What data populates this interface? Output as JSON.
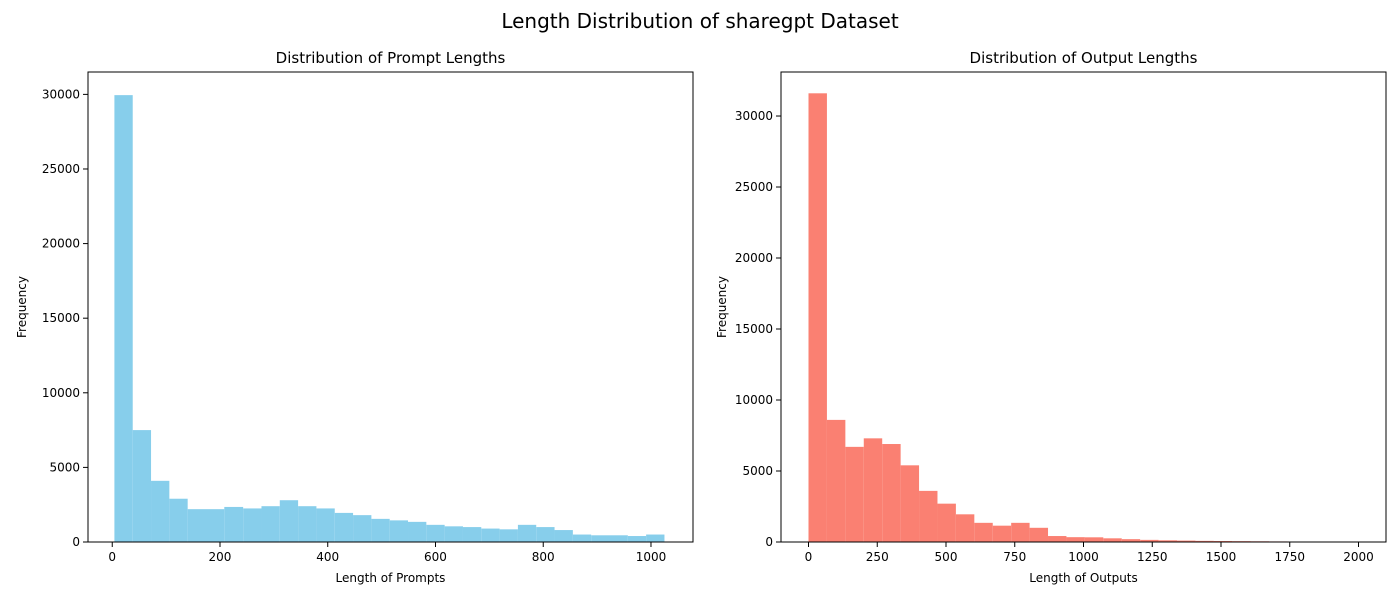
{
  "figure": {
    "title": "Length Distribution of sharegpt Dataset"
  },
  "chart_data": [
    {
      "type": "bar",
      "title": "Distribution of Prompt Lengths",
      "xlabel": "Length of Prompts",
      "ylabel": "Frequency",
      "color": "#87CEEB",
      "xlim": [
        -45,
        1078
      ],
      "ylim": [
        0,
        31500
      ],
      "bins": [
        {
          "x0": 4,
          "x1": 38,
          "count": 29950
        },
        {
          "x0": 38,
          "x1": 72,
          "count": 7500
        },
        {
          "x0": 72,
          "x1": 106,
          "count": 4100
        },
        {
          "x0": 106,
          "x1": 140,
          "count": 2900
        },
        {
          "x0": 140,
          "x1": 174,
          "count": 2200
        },
        {
          "x0": 174,
          "x1": 208,
          "count": 2200
        },
        {
          "x0": 208,
          "x1": 243,
          "count": 2350
        },
        {
          "x0": 243,
          "x1": 277,
          "count": 2250
        },
        {
          "x0": 277,
          "x1": 311,
          "count": 2400
        },
        {
          "x0": 311,
          "x1": 345,
          "count": 2800
        },
        {
          "x0": 345,
          "x1": 379,
          "count": 2400
        },
        {
          "x0": 379,
          "x1": 413,
          "count": 2250
        },
        {
          "x0": 413,
          "x1": 447,
          "count": 1950
        },
        {
          "x0": 447,
          "x1": 481,
          "count": 1800
        },
        {
          "x0": 481,
          "x1": 515,
          "count": 1550
        },
        {
          "x0": 515,
          "x1": 549,
          "count": 1450
        },
        {
          "x0": 549,
          "x1": 583,
          "count": 1350
        },
        {
          "x0": 583,
          "x1": 617,
          "count": 1150
        },
        {
          "x0": 617,
          "x1": 651,
          "count": 1050
        },
        {
          "x0": 651,
          "x1": 685,
          "count": 1000
        },
        {
          "x0": 685,
          "x1": 719,
          "count": 900
        },
        {
          "x0": 719,
          "x1": 753,
          "count": 850
        },
        {
          "x0": 753,
          "x1": 787,
          "count": 1150
        },
        {
          "x0": 787,
          "x1": 821,
          "count": 1000
        },
        {
          "x0": 821,
          "x1": 855,
          "count": 800
        },
        {
          "x0": 855,
          "x1": 889,
          "count": 500
        },
        {
          "x0": 889,
          "x1": 923,
          "count": 450
        },
        {
          "x0": 923,
          "x1": 957,
          "count": 450
        },
        {
          "x0": 957,
          "x1": 991,
          "count": 400
        },
        {
          "x0": 991,
          "x1": 1025,
          "count": 500
        }
      ],
      "xticks": [
        0,
        200,
        400,
        600,
        800,
        1000
      ],
      "yticks": [
        0,
        5000,
        10000,
        15000,
        20000,
        25000,
        30000
      ]
    },
    {
      "type": "bar",
      "title": "Distribution of Output Lengths",
      "xlabel": "Length of Outputs",
      "ylabel": "Frequency",
      "color": "#FA8072",
      "xlim": [
        -100,
        2100
      ],
      "ylim": [
        0,
        33100
      ],
      "bins": [
        {
          "x0": 0,
          "x1": 67,
          "count": 31600
        },
        {
          "x0": 67,
          "x1": 134,
          "count": 8600
        },
        {
          "x0": 134,
          "x1": 201,
          "count": 6700
        },
        {
          "x0": 201,
          "x1": 268,
          "count": 7300
        },
        {
          "x0": 268,
          "x1": 335,
          "count": 6900
        },
        {
          "x0": 335,
          "x1": 402,
          "count": 5400
        },
        {
          "x0": 402,
          "x1": 469,
          "count": 3600
        },
        {
          "x0": 469,
          "x1": 536,
          "count": 2700
        },
        {
          "x0": 536,
          "x1": 603,
          "count": 1950
        },
        {
          "x0": 603,
          "x1": 670,
          "count": 1350
        },
        {
          "x0": 670,
          "x1": 737,
          "count": 1150
        },
        {
          "x0": 737,
          "x1": 804,
          "count": 1350
        },
        {
          "x0": 804,
          "x1": 871,
          "count": 1000
        },
        {
          "x0": 871,
          "x1": 938,
          "count": 420
        },
        {
          "x0": 938,
          "x1": 1005,
          "count": 340
        },
        {
          "x0": 1005,
          "x1": 1072,
          "count": 330
        },
        {
          "x0": 1072,
          "x1": 1139,
          "count": 260
        },
        {
          "x0": 1139,
          "x1": 1206,
          "count": 200
        },
        {
          "x0": 1206,
          "x1": 1273,
          "count": 150
        },
        {
          "x0": 1273,
          "x1": 1340,
          "count": 120
        },
        {
          "x0": 1340,
          "x1": 1407,
          "count": 100
        },
        {
          "x0": 1407,
          "x1": 1474,
          "count": 80
        },
        {
          "x0": 1474,
          "x1": 1541,
          "count": 70
        },
        {
          "x0": 1541,
          "x1": 1608,
          "count": 60
        },
        {
          "x0": 1608,
          "x1": 1675,
          "count": 50
        },
        {
          "x0": 1675,
          "x1": 1742,
          "count": 40
        },
        {
          "x0": 1742,
          "x1": 1809,
          "count": 25
        },
        {
          "x0": 1809,
          "x1": 1876,
          "count": 20
        },
        {
          "x0": 1876,
          "x1": 1943,
          "count": 15
        },
        {
          "x0": 1943,
          "x1": 2000,
          "count": 10
        }
      ],
      "xticks": [
        0,
        250,
        500,
        750,
        1000,
        1250,
        1500,
        1750,
        2000
      ],
      "yticks": [
        0,
        5000,
        10000,
        15000,
        20000,
        25000,
        30000
      ]
    }
  ]
}
